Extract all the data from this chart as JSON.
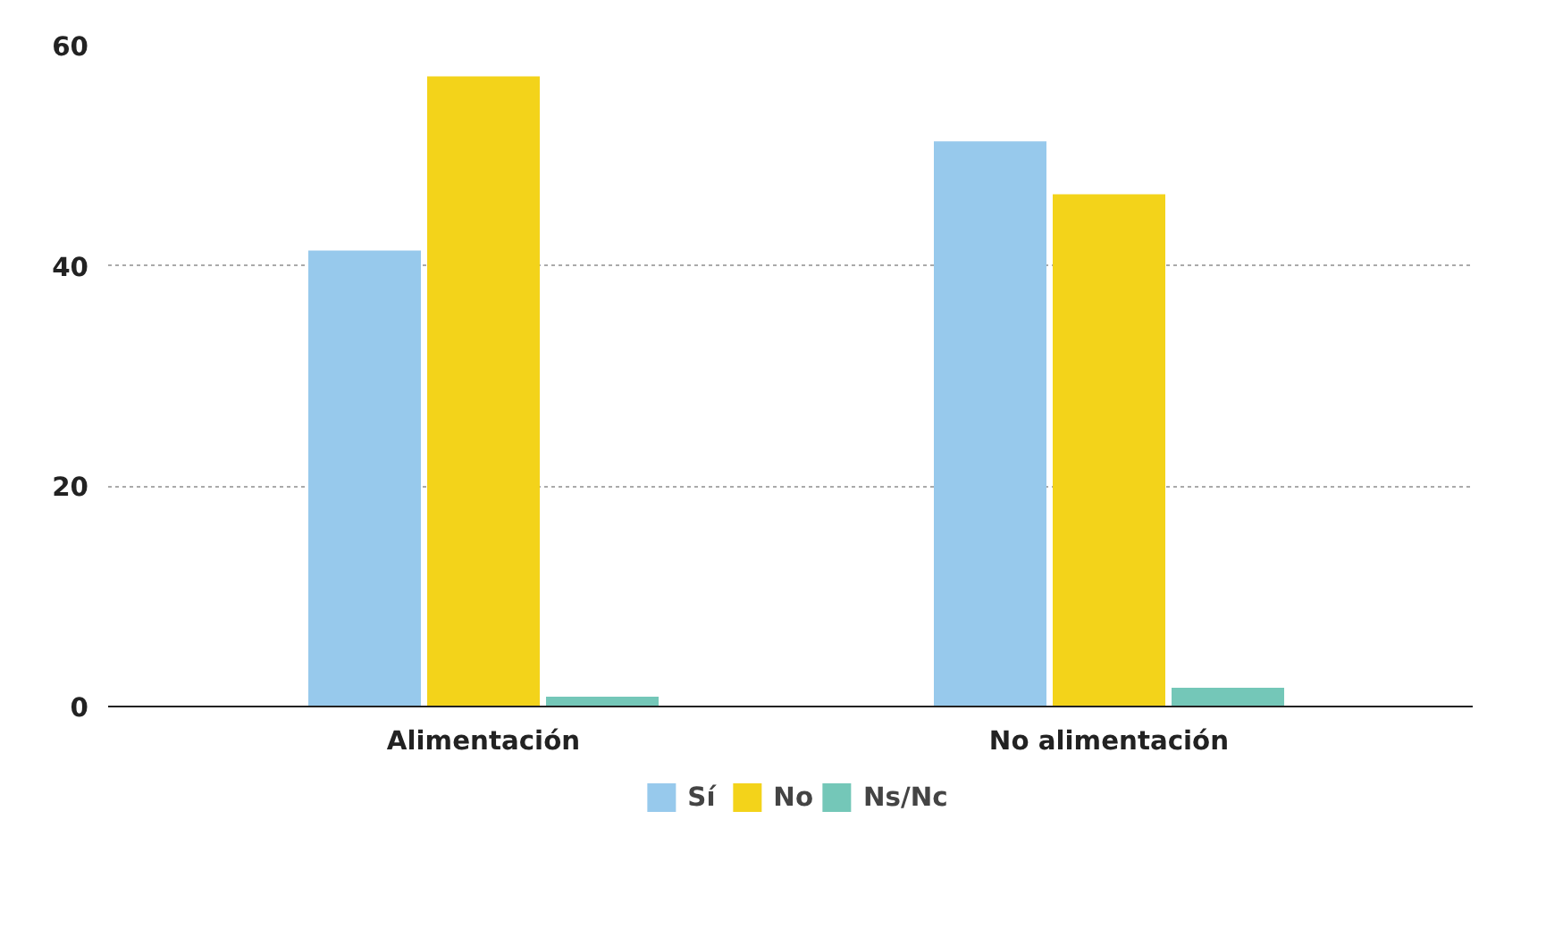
{
  "chart_data": {
    "type": "bar",
    "categories": [
      "Alimentación",
      "No alimentación"
    ],
    "series": [
      {
        "name": "Sí",
        "color": "#97c9ec",
        "values": [
          41.4,
          51.3
        ]
      },
      {
        "name": "No",
        "color": "#f3d31a",
        "values": [
          57.2,
          46.5
        ]
      },
      {
        "name": "Ns/Nc",
        "color": "#74c7b8",
        "values": [
          0.9,
          1.7
        ]
      }
    ],
    "ylim": [
      0,
      60
    ],
    "yticks": [
      0,
      20,
      40,
      60
    ],
    "grid": "y",
    "legend": "bottom"
  }
}
